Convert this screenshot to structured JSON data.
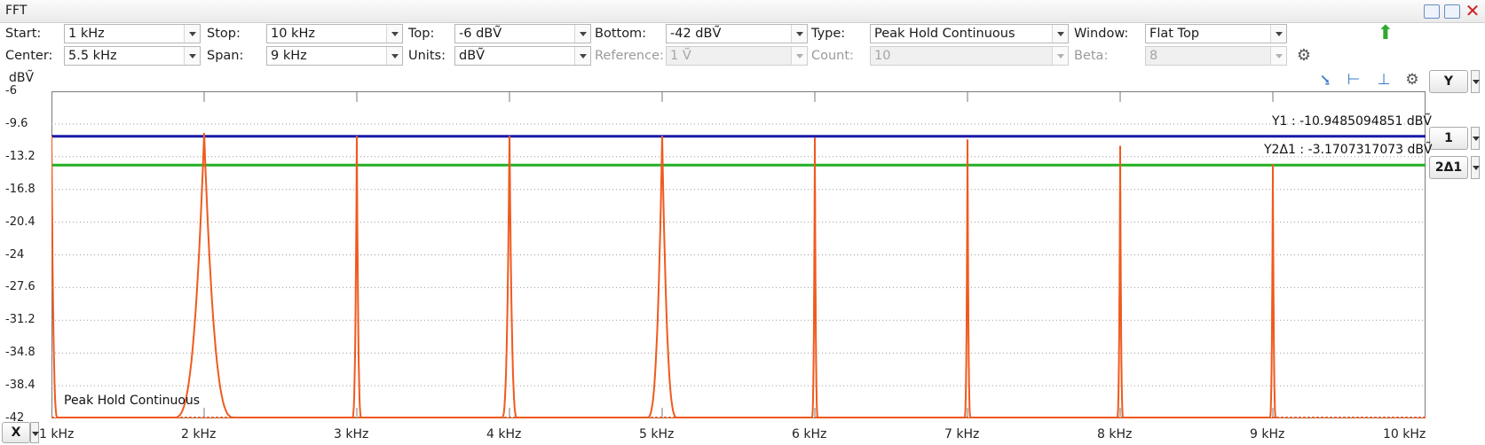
{
  "window": {
    "title": "FFT"
  },
  "controls": {
    "start_label": "Start:",
    "start_value": "1 kHz",
    "stop_label": "Stop:",
    "stop_value": "10 kHz",
    "top_label": "Top:",
    "top_value": "-6 dBṼ",
    "bottom_label": "Bottom:",
    "bottom_value": "-42 dBṼ",
    "type_label": "Type:",
    "type_value": "Peak Hold Continuous",
    "window_label": "Window:",
    "window_value": "Flat Top",
    "center_label": "Center:",
    "center_value": "5.5 kHz",
    "span_label": "Span:",
    "span_value": "9 kHz",
    "units_label": "Units:",
    "units_value": "dBṼ",
    "reference_label": "Reference:",
    "reference_value": "1 Ṽ",
    "count_label": "Count:",
    "count_value": "10",
    "beta_label": "Beta:",
    "beta_value": "8"
  },
  "side": {
    "y_button": "Y",
    "cursor1_button": "1",
    "cursor2_button": "2Δ1",
    "x_button": "X"
  },
  "cursors": {
    "y1_label": "Y1 : -10.9485094851 dBṼ",
    "y2_label": "Y2Δ1 : -3.1707317073 dBṼ",
    "y1_color": "#1a1aa8",
    "y2_color": "#22b022"
  },
  "icons": {
    "green_arrow": "arrow-up-icon",
    "settings": "gear-icon"
  },
  "chart_data": {
    "type": "line",
    "ylabel": "dBṼ",
    "trace_name": "Peak Hold Continuous",
    "trace_color": "#f05a1e",
    "ylim": [
      -42,
      -6
    ],
    "xlim": [
      1,
      10
    ],
    "y_ticks": [
      "-6",
      "-9.6",
      "-13.2",
      "-16.8",
      "-20.4",
      "-24",
      "-27.6",
      "-31.2",
      "-34.8",
      "-38.4",
      "-42"
    ],
    "x_ticks": [
      {
        "value": 1,
        "label": "1 kHz"
      },
      {
        "value": 2,
        "label": "2 kHz"
      },
      {
        "value": 3,
        "label": "3 kHz"
      },
      {
        "value": 4,
        "label": "4 kHz"
      },
      {
        "value": 5,
        "label": "5 kHz"
      },
      {
        "value": 6,
        "label": "6 kHz"
      },
      {
        "value": 7,
        "label": "7 kHz"
      },
      {
        "value": 8,
        "label": "8 kHz"
      },
      {
        "value": 9,
        "label": "9 kHz"
      },
      {
        "value": 10,
        "label": "10 kHz"
      }
    ],
    "grid": true,
    "peaks": [
      {
        "x": 1.0,
        "y": -10.9,
        "width": 0.04
      },
      {
        "x": 2.0,
        "y": -10.6,
        "width": 0.2
      },
      {
        "x": 3.0,
        "y": -10.9,
        "width": 0.03
      },
      {
        "x": 4.0,
        "y": -10.9,
        "width": 0.05
      },
      {
        "x": 5.0,
        "y": -10.9,
        "width": 0.1
      },
      {
        "x": 6.0,
        "y": -11.1,
        "width": 0.02
      },
      {
        "x": 7.0,
        "y": -11.3,
        "width": 0.02
      },
      {
        "x": 8.0,
        "y": -12.0,
        "width": 0.02
      },
      {
        "x": 9.0,
        "y": -14.0,
        "width": 0.02
      }
    ],
    "cursor_y1": -10.9485094851,
    "cursor_y2": -14.1192411924
  }
}
